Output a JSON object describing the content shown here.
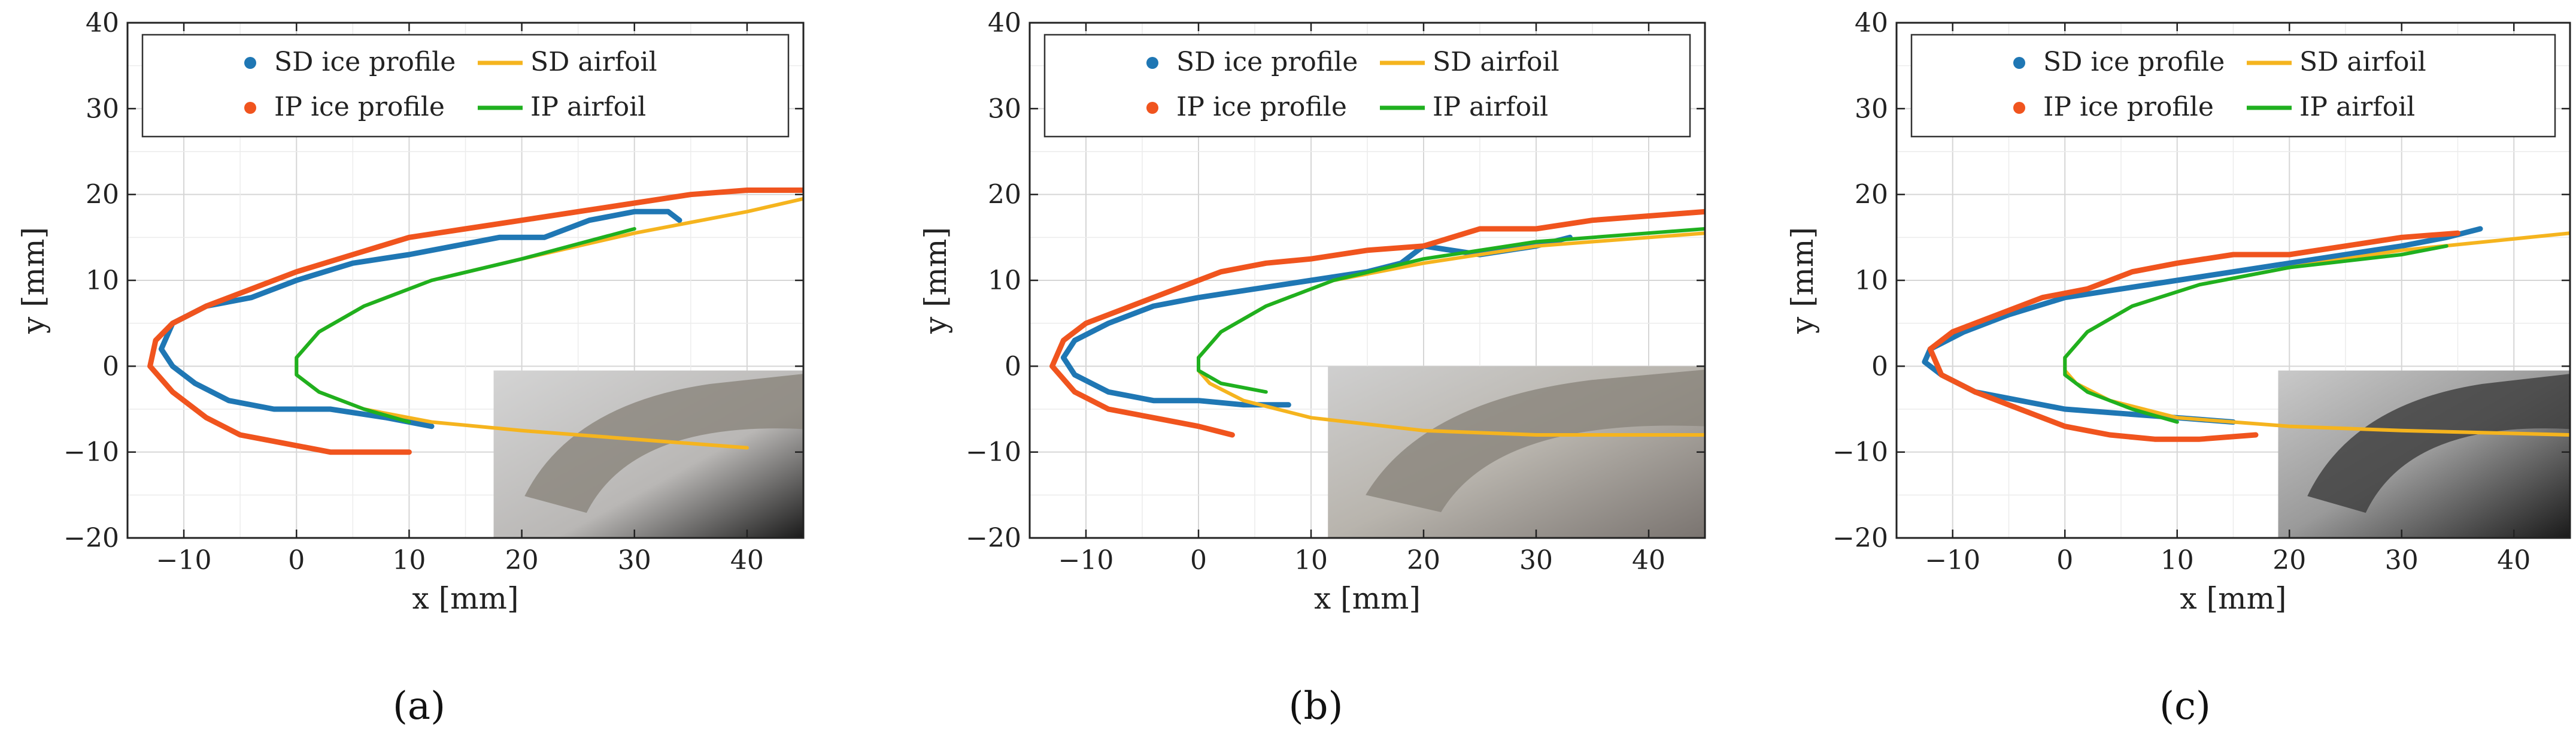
{
  "legend": {
    "sd_ice": "SD ice profile",
    "sd_airfoil": "SD airfoil",
    "ip_ice": "IP ice profile",
    "ip_airfoil": "IP airfoil"
  },
  "colors": {
    "sd_ice": "#1f77b4",
    "ip_ice": "#f0541e",
    "sd_airfoil": "#f5b41e",
    "ip_airfoil": "#1fb01f"
  },
  "chart_data": [
    {
      "type": "line",
      "panel_label": "(a)",
      "xlabel": "x [mm]",
      "ylabel": "y [mm]",
      "xlim": [
        -15,
        45
      ],
      "ylim": [
        -20,
        40
      ],
      "xticks": [
        -10,
        0,
        10,
        20,
        30,
        40
      ],
      "yticks": [
        -20,
        -10,
        0,
        10,
        20,
        30,
        40
      ],
      "grid": true,
      "legend_position": "top",
      "inset": "photo of iced airfoil leading edge, bottom-right",
      "series": [
        {
          "name": "SD ice profile",
          "style": "markers",
          "x": [
            12,
            8,
            3,
            -2,
            -6,
            -9,
            -11,
            -12,
            -11,
            -8,
            -4,
            0,
            5,
            10,
            14,
            18,
            22,
            26,
            30,
            33,
            34
          ],
          "y": [
            -7,
            -6,
            -5,
            -5,
            -4,
            -2,
            0,
            2,
            5,
            7,
            8,
            10,
            12,
            13,
            14,
            15,
            15,
            17,
            18,
            18,
            17
          ]
        },
        {
          "name": "IP ice profile",
          "style": "markers",
          "x": [
            10,
            7,
            3,
            -1,
            -5,
            -8,
            -11,
            -13,
            -12.5,
            -11,
            -8,
            -4,
            0,
            5,
            10,
            15,
            20,
            25,
            30,
            35,
            40,
            45
          ],
          "y": [
            -10,
            -10,
            -10,
            -9,
            -8,
            -6,
            -3,
            0,
            3,
            5,
            7,
            9,
            11,
            13,
            15,
            16,
            17,
            18,
            19,
            20,
            20.5,
            20.5
          ]
        },
        {
          "name": "SD airfoil",
          "style": "line",
          "x": [
            40,
            30,
            20,
            12,
            6,
            2,
            0,
            0,
            2,
            6,
            12,
            20,
            30,
            40,
            45
          ],
          "y": [
            -9.5,
            -8.5,
            -7.5,
            -6.5,
            -5,
            -3,
            -1,
            1,
            4,
            7,
            10,
            12.5,
            15.5,
            18,
            19.5
          ]
        },
        {
          "name": "IP airfoil",
          "style": "line",
          "x": [
            10,
            6,
            2,
            0,
            0,
            2,
            6,
            12,
            20,
            30
          ],
          "y": [
            -6.5,
            -5,
            -3,
            -1,
            1,
            4,
            7,
            10,
            12.5,
            16
          ]
        }
      ]
    },
    {
      "type": "line",
      "panel_label": "(b)",
      "xlabel": "x [mm]",
      "ylabel": "y [mm]",
      "xlim": [
        -15,
        45
      ],
      "ylim": [
        -20,
        40
      ],
      "xticks": [
        -10,
        0,
        10,
        20,
        30,
        40
      ],
      "yticks": [
        -20,
        -10,
        0,
        10,
        20,
        30,
        40
      ],
      "grid": true,
      "legend_position": "top",
      "inset": "photo of iced airfoil leading edge, bottom-right",
      "series": [
        {
          "name": "SD ice profile",
          "style": "markers",
          "x": [
            8,
            4,
            0,
            -4,
            -8,
            -11,
            -12,
            -11,
            -8,
            -4,
            0,
            5,
            10,
            15,
            18,
            20,
            25,
            30,
            33
          ],
          "y": [
            -4.5,
            -4.5,
            -4,
            -4,
            -3,
            -1,
            1,
            3,
            5,
            7,
            8,
            9,
            10,
            11,
            12,
            14,
            13,
            14,
            15
          ]
        },
        {
          "name": "IP ice profile",
          "style": "markers",
          "x": [
            3,
            0,
            -4,
            -8,
            -11,
            -13,
            -12,
            -10,
            -6,
            -2,
            2,
            6,
            10,
            15,
            20,
            25,
            30,
            35,
            40,
            45
          ],
          "y": [
            -8,
            -7,
            -6,
            -5,
            -3,
            0,
            3,
            5,
            7,
            9,
            11,
            12,
            12.5,
            13.5,
            14,
            16,
            16,
            17,
            17.5,
            18
          ]
        },
        {
          "name": "SD airfoil",
          "style": "line",
          "x": [
            45,
            30,
            20,
            10,
            4,
            1,
            0,
            0,
            2,
            6,
            12,
            20,
            30,
            45
          ],
          "y": [
            -8,
            -8,
            -7.5,
            -6,
            -4,
            -2,
            -0.5,
            1,
            4,
            7,
            10,
            12,
            14,
            15.5
          ]
        },
        {
          "name": "IP airfoil",
          "style": "line",
          "x": [
            6,
            2,
            0,
            0,
            2,
            6,
            12,
            20,
            30,
            45
          ],
          "y": [
            -3,
            -2,
            -0.5,
            1,
            4,
            7,
            10,
            12.5,
            14.5,
            16
          ]
        }
      ]
    },
    {
      "type": "line",
      "panel_label": "(c)",
      "xlabel": "x [mm]",
      "ylabel": "y [mm]",
      "xlim": [
        -15,
        45
      ],
      "ylim": [
        -20,
        40
      ],
      "xticks": [
        -10,
        0,
        10,
        20,
        30,
        40
      ],
      "yticks": [
        -20,
        -10,
        0,
        10,
        20,
        30,
        40
      ],
      "grid": true,
      "legend_position": "top",
      "inset": "photo of iced airfoil leading edge, bottom-right",
      "series": [
        {
          "name": "SD ice profile",
          "style": "markers",
          "x": [
            15,
            10,
            5,
            0,
            -4,
            -8,
            -11,
            -12.5,
            -12,
            -9,
            -5,
            0,
            5,
            10,
            15,
            20,
            25,
            30,
            34,
            37
          ],
          "y": [
            -6.5,
            -6,
            -5.5,
            -5,
            -4,
            -3,
            -1,
            0.5,
            2,
            4,
            6,
            8,
            9,
            10,
            11,
            12,
            13,
            14,
            15,
            16
          ]
        },
        {
          "name": "IP ice profile",
          "style": "markers",
          "x": [
            17,
            12,
            8,
            4,
            0,
            -4,
            -8,
            -11,
            -12,
            -10,
            -6,
            -2,
            2,
            6,
            10,
            15,
            20,
            25,
            30,
            35
          ],
          "y": [
            -8,
            -8.5,
            -8.5,
            -8,
            -7,
            -5,
            -3,
            -1,
            2,
            4,
            6,
            8,
            9,
            11,
            12,
            13,
            13,
            14,
            15,
            15.5
          ]
        },
        {
          "name": "SD airfoil",
          "style": "line",
          "x": [
            45,
            30,
            20,
            10,
            4,
            1,
            0,
            0,
            2,
            6,
            12,
            20,
            30,
            45
          ],
          "y": [
            -8,
            -7.5,
            -7,
            -6,
            -4,
            -2,
            -0.5,
            1,
            4,
            7,
            9.5,
            11.5,
            13.5,
            15.5
          ]
        },
        {
          "name": "IP airfoil",
          "style": "line",
          "x": [
            10,
            6,
            2,
            0,
            0,
            2,
            6,
            12,
            20,
            30,
            34
          ],
          "y": [
            -6.5,
            -5,
            -3,
            -1,
            1,
            4,
            7,
            9.5,
            11.5,
            13,
            14
          ]
        }
      ]
    }
  ]
}
